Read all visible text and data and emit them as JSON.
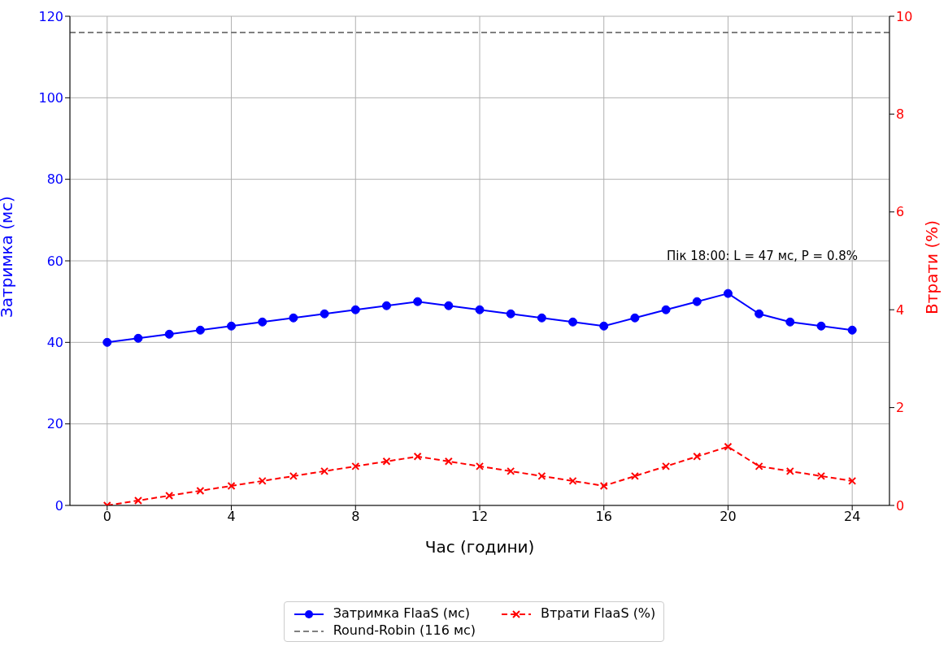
{
  "chart_data": {
    "type": "line",
    "xlabel": "Час (години)",
    "ylabel": "Затримка (мс)",
    "y2label": "Втрати (%)",
    "x": [
      0,
      1,
      2,
      3,
      4,
      5,
      6,
      7,
      8,
      9,
      10,
      11,
      12,
      13,
      14,
      15,
      16,
      17,
      18,
      19,
      20,
      21,
      22,
      23,
      24
    ],
    "series": [
      {
        "name": "Затримка FlaaS (мс)",
        "color": "#0000ff",
        "marker": "circle",
        "line_style": "solid",
        "values": [
          40,
          41,
          42,
          43,
          44,
          45,
          46,
          47,
          48,
          49,
          50,
          49,
          48,
          47,
          46,
          45,
          44,
          46,
          48,
          50,
          52,
          47,
          45,
          44,
          43
        ]
      },
      {
        "name": "Втрати FlaaS (%)",
        "color": "#ff0000",
        "marker": "cross",
        "line_style": "dashed",
        "axis": "y2",
        "values": [
          0,
          0.1,
          0.2,
          0.3,
          0.4,
          0.5,
          0.6,
          0.7,
          0.8,
          0.9,
          1.0,
          0.9,
          0.8,
          0.7,
          0.6,
          0.5,
          0.4,
          0.6,
          0.8,
          1.0,
          1.2,
          0.8,
          0.7,
          0.6,
          0.5
        ]
      }
    ],
    "ref_lines": [
      {
        "axis": "y",
        "value": 116,
        "label": "Round-Robin (116 мс)",
        "color": "#808080",
        "line_style": "dashed"
      }
    ],
    "annotations": [
      "Пік 18:00: L = 47 мс, P = 0.8%"
    ],
    "xlim": [
      -1.2,
      25.2
    ],
    "xticks": [
      0,
      4,
      8,
      12,
      16,
      20,
      24
    ],
    "ylim": [
      0,
      120
    ],
    "yticks": [
      0,
      20,
      40,
      60,
      80,
      100,
      120
    ],
    "y2lim": [
      0,
      10
    ],
    "y2ticks": [
      0,
      2,
      4,
      6,
      8,
      10
    ],
    "grid": true,
    "legend": "bottom"
  }
}
